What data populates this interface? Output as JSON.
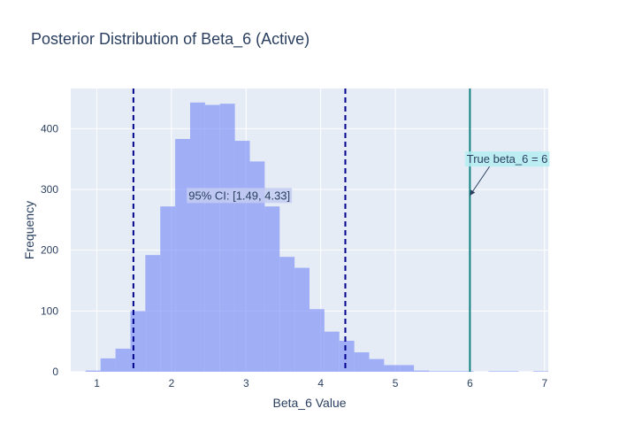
{
  "chart_data": {
    "type": "bar",
    "title": "Posterior Distribution of Beta_6 (Active)",
    "xlabel": "Beta_6 Value",
    "ylabel": "Frequency",
    "xlim": [
      0.65,
      7.05
    ],
    "ylim": [
      0,
      466
    ],
    "xticks": [
      1,
      2,
      3,
      4,
      5,
      6,
      7
    ],
    "yticks": [
      0,
      100,
      200,
      300,
      400
    ],
    "grid": true,
    "series": [
      {
        "values": [
          {
            "x0": 0.65,
            "x1": 0.85,
            "y": 0
          },
          {
            "x0": 0.85,
            "x1": 1.05,
            "y": 2
          },
          {
            "x0": 1.05,
            "x1": 1.25,
            "y": 22
          },
          {
            "x0": 1.25,
            "x1": 1.45,
            "y": 38
          },
          {
            "x0": 1.45,
            "x1": 1.65,
            "y": 100
          },
          {
            "x0": 1.65,
            "x1": 1.85,
            "y": 192
          },
          {
            "x0": 1.85,
            "x1": 2.05,
            "y": 272
          },
          {
            "x0": 2.05,
            "x1": 2.25,
            "y": 383
          },
          {
            "x0": 2.25,
            "x1": 2.45,
            "y": 443
          },
          {
            "x0": 2.45,
            "x1": 2.65,
            "y": 439
          },
          {
            "x0": 2.65,
            "x1": 2.85,
            "y": 441
          },
          {
            "x0": 2.85,
            "x1": 3.05,
            "y": 380
          },
          {
            "x0": 3.05,
            "x1": 3.25,
            "y": 346
          },
          {
            "x0": 3.25,
            "x1": 3.45,
            "y": 272
          },
          {
            "x0": 3.45,
            "x1": 3.65,
            "y": 189
          },
          {
            "x0": 3.65,
            "x1": 3.85,
            "y": 171
          },
          {
            "x0": 3.85,
            "x1": 4.05,
            "y": 103
          },
          {
            "x0": 4.05,
            "x1": 4.25,
            "y": 66
          },
          {
            "x0": 4.25,
            "x1": 4.45,
            "y": 51
          },
          {
            "x0": 4.45,
            "x1": 4.65,
            "y": 32
          },
          {
            "x0": 4.65,
            "x1": 4.85,
            "y": 21
          },
          {
            "x0": 4.85,
            "x1": 5.05,
            "y": 11
          },
          {
            "x0": 5.05,
            "x1": 5.25,
            "y": 11
          },
          {
            "x0": 5.25,
            "x1": 5.45,
            "y": 2
          },
          {
            "x0": 5.45,
            "x1": 5.65,
            "y": 1
          },
          {
            "x0": 5.65,
            "x1": 5.85,
            "y": 1
          },
          {
            "x0": 5.85,
            "x1": 6.05,
            "y": 1
          },
          {
            "x0": 6.05,
            "x1": 6.25,
            "y": 0
          },
          {
            "x0": 6.25,
            "x1": 6.45,
            "y": 1
          },
          {
            "x0": 6.45,
            "x1": 6.65,
            "y": 1
          },
          {
            "x0": 6.65,
            "x1": 6.85,
            "y": 0
          },
          {
            "x0": 6.85,
            "x1": 7.05,
            "y": 1
          }
        ],
        "color": "#8394f7"
      }
    ],
    "vlines": [
      {
        "x": 1.49,
        "color": "#00008b",
        "dash": true
      },
      {
        "x": 4.33,
        "color": "#00008b",
        "dash": true
      },
      {
        "x": 6.0,
        "color": "#0f7f7f",
        "dash": false
      }
    ],
    "annotations": [
      {
        "text": "95% CI: [1.49, 4.33]",
        "x": 2.91,
        "y": 290,
        "bg": "#c3cdf1"
      },
      {
        "text": "True beta_6 = 6",
        "x": 6.5,
        "y": 350,
        "bg": "#b4edf1",
        "arrow_to": {
          "x": 6.0,
          "y": 290
        }
      }
    ],
    "colors": {
      "plot_bg": "#e5ecf6",
      "grid": "#ffffff",
      "text": "#2a3f5f"
    }
  }
}
